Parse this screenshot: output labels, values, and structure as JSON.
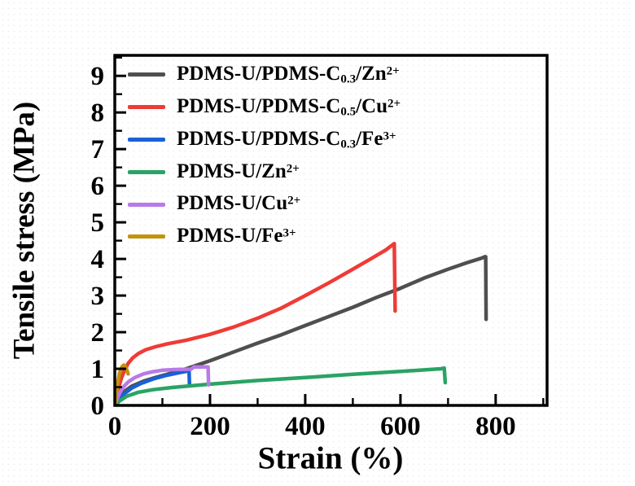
{
  "figure": {
    "background": "#ffffff",
    "frame_color": "#000000"
  },
  "axes": {
    "xlabel": "Strain (%)",
    "ylabel": "Tensile stress (MPa)"
  },
  "chart_data": {
    "type": "line",
    "title": "",
    "xlabel": "Strain (%)",
    "ylabel": "Tensile stress (MPa)",
    "xlim": [
      0,
      908
    ],
    "ylim": [
      0,
      9.56
    ],
    "grid": false,
    "legend_position": "upper-left-inside",
    "x_ticks_major": [
      0,
      200,
      400,
      600,
      800
    ],
    "x_ticks_minor": [
      100,
      300,
      500,
      700,
      900
    ],
    "y_ticks_major": [
      0,
      1,
      2,
      3,
      4,
      5,
      6,
      7,
      8,
      9
    ],
    "y_ticks_minor": [
      0.5,
      1.5,
      2.5,
      3.5,
      4.5,
      5.5,
      6.5,
      7.5,
      8.5,
      9.5
    ],
    "series": [
      {
        "name": "PDMS-U/PDMS-C0.3/Zn2+",
        "label_parts": {
          "pre": "PDMS-U/PDMS-C",
          "sub": "0.3",
          "mid": "/Zn",
          "sup": "2+"
        },
        "color": "#4f4f4f",
        "break_strain": 778,
        "peak_stress": 4.06,
        "points": [
          [
            0,
            0
          ],
          [
            8,
            0.2
          ],
          [
            20,
            0.38
          ],
          [
            35,
            0.52
          ],
          [
            60,
            0.66
          ],
          [
            85,
            0.76
          ],
          [
            110,
            0.85
          ],
          [
            150,
            1.0
          ],
          [
            200,
            1.22
          ],
          [
            250,
            1.46
          ],
          [
            300,
            1.7
          ],
          [
            350,
            1.93
          ],
          [
            400,
            2.18
          ],
          [
            450,
            2.43
          ],
          [
            500,
            2.68
          ],
          [
            550,
            2.95
          ],
          [
            600,
            3.2
          ],
          [
            650,
            3.48
          ],
          [
            700,
            3.72
          ],
          [
            740,
            3.9
          ],
          [
            770,
            4.02
          ],
          [
            777,
            4.06
          ],
          [
            779,
            4.06
          ],
          [
            780,
            2.35
          ]
        ]
      },
      {
        "name": "PDMS-U/PDMS-C0.5/Cu2+",
        "label_parts": {
          "pre": "PDMS-U/PDMS-C",
          "sub": "0.5",
          "mid": "/Cu",
          "sup": "2+"
        },
        "color": "#ef3b36",
        "break_strain": 587,
        "peak_stress": 4.42,
        "points": [
          [
            0,
            0
          ],
          [
            4,
            0.25
          ],
          [
            8,
            0.48
          ],
          [
            14,
            0.75
          ],
          [
            20,
            0.95
          ],
          [
            28,
            1.15
          ],
          [
            38,
            1.3
          ],
          [
            50,
            1.42
          ],
          [
            65,
            1.52
          ],
          [
            85,
            1.6
          ],
          [
            110,
            1.68
          ],
          [
            150,
            1.78
          ],
          [
            200,
            1.94
          ],
          [
            250,
            2.14
          ],
          [
            300,
            2.38
          ],
          [
            350,
            2.66
          ],
          [
            400,
            3.0
          ],
          [
            450,
            3.35
          ],
          [
            500,
            3.72
          ],
          [
            540,
            4.02
          ],
          [
            570,
            4.25
          ],
          [
            585,
            4.4
          ],
          [
            587,
            4.42
          ],
          [
            589,
            2.58
          ]
        ]
      },
      {
        "name": "PDMS-U/PDMS-C0.3/Fe3+",
        "label_parts": {
          "pre": "PDMS-U/PDMS-C",
          "sub": "0.3",
          "mid": "/Fe",
          "sup": "3+"
        },
        "color": "#1961d5",
        "break_strain": 156,
        "peak_stress": 0.95,
        "points": [
          [
            0,
            0
          ],
          [
            8,
            0.15
          ],
          [
            20,
            0.32
          ],
          [
            35,
            0.47
          ],
          [
            55,
            0.6
          ],
          [
            80,
            0.72
          ],
          [
            105,
            0.81
          ],
          [
            130,
            0.88
          ],
          [
            150,
            0.93
          ],
          [
            156,
            0.95
          ],
          [
            157,
            0.55
          ]
        ]
      },
      {
        "name": "PDMS-U/Zn2+",
        "label_parts": {
          "pre": "PDMS-U/Zn",
          "sub": "",
          "mid": "",
          "sup": "2+"
        },
        "color": "#2aa365",
        "break_strain": 692,
        "peak_stress": 1.02,
        "points": [
          [
            0,
            0
          ],
          [
            10,
            0.12
          ],
          [
            25,
            0.25
          ],
          [
            50,
            0.36
          ],
          [
            80,
            0.43
          ],
          [
            120,
            0.49
          ],
          [
            200,
            0.58
          ],
          [
            300,
            0.68
          ],
          [
            400,
            0.76
          ],
          [
            500,
            0.85
          ],
          [
            600,
            0.93
          ],
          [
            650,
            0.97
          ],
          [
            685,
            1.0
          ],
          [
            692,
            1.02
          ],
          [
            694,
            0.62
          ]
        ]
      },
      {
        "name": "PDMS-U/Cu2+",
        "label_parts": {
          "pre": "PDMS-U/Cu",
          "sub": "",
          "mid": "",
          "sup": "2+"
        },
        "color": "#b87ae6",
        "break_strain": 196,
        "peak_stress": 1.05,
        "points": [
          [
            0,
            0
          ],
          [
            5,
            0.18
          ],
          [
            10,
            0.33
          ],
          [
            18,
            0.5
          ],
          [
            28,
            0.64
          ],
          [
            42,
            0.76
          ],
          [
            60,
            0.86
          ],
          [
            80,
            0.92
          ],
          [
            100,
            0.96
          ],
          [
            130,
            0.98
          ],
          [
            160,
            0.99
          ],
          [
            166,
            1.05
          ],
          [
            180,
            1.05
          ],
          [
            196,
            1.05
          ],
          [
            197,
            0.56
          ]
        ]
      },
      {
        "name": "PDMS-U/Fe3+",
        "label_parts": {
          "pre": "PDMS-U/Fe",
          "sub": "",
          "mid": "",
          "sup": "3+"
        },
        "color": "#c3920e",
        "break_strain": 19,
        "peak_stress": 1.1,
        "points": [
          [
            0,
            0
          ],
          [
            2,
            0.2
          ],
          [
            4,
            0.42
          ],
          [
            6,
            0.6
          ],
          [
            8,
            0.75
          ],
          [
            10,
            0.88
          ],
          [
            13,
            1.0
          ],
          [
            16,
            1.07
          ],
          [
            19,
            1.1
          ],
          [
            22,
            1.06
          ],
          [
            25,
            0.98
          ],
          [
            27,
            0.9
          ],
          [
            28,
            0.86
          ]
        ]
      }
    ]
  }
}
